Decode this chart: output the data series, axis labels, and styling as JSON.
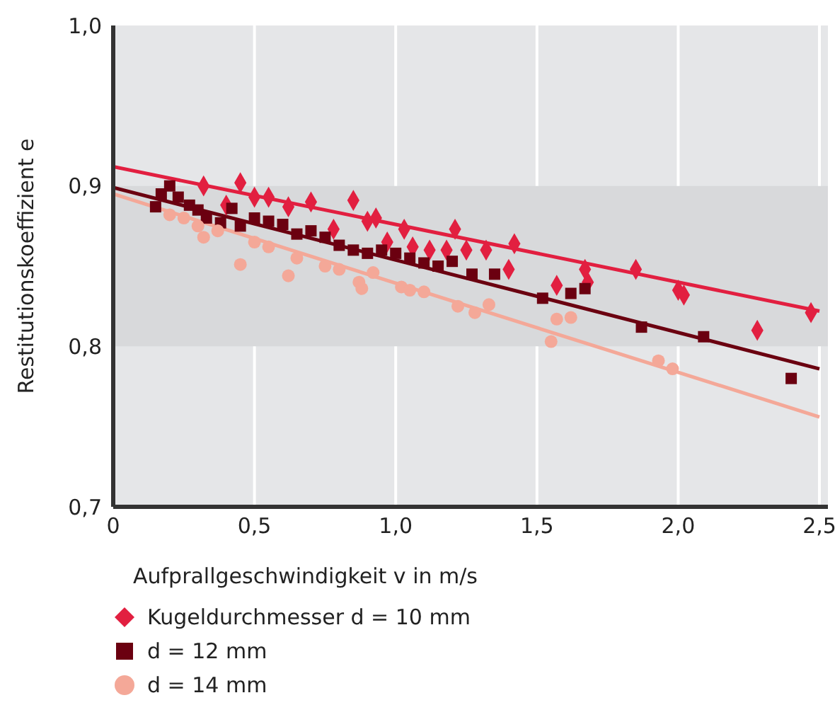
{
  "chart_data": {
    "type": "scatter",
    "xlabel": "Aufprallgeschwindigkeit v in m/s",
    "ylabel": "Restitutionskoeffizient e",
    "xlim": [
      0,
      2.53
    ],
    "xticks": [
      0,
      {
        "value": 0.5,
        "label": "0,5"
      },
      {
        "value": 1,
        "label": "1,0"
      },
      {
        "value": 1.5,
        "label": "1,5"
      },
      {
        "value": 2,
        "label": "2,0"
      },
      {
        "value": 2.5,
        "label": "2,5"
      }
    ],
    "ylim": [
      0.7,
      1.0
    ],
    "yticks": [
      {
        "value": 0.7,
        "label": "0,7"
      },
      {
        "value": 0.8,
        "label": "0,8"
      },
      {
        "value": 0.9,
        "label": "0,9"
      },
      {
        "value": 1.0,
        "label": "1,0"
      }
    ],
    "grid": "x",
    "legend": "bottom left",
    "bands": [
      {
        "axis": "y",
        "from": 0.8,
        "to": 0.9,
        "color": "#d8d9db"
      }
    ],
    "series": [
      {
        "name": "Kugeldurchmesser d = 10 mm",
        "marker": "diamond",
        "color": "#e21f40",
        "x": [
          0.32,
          0.4,
          0.45,
          0.5,
          0.55,
          0.62,
          0.7,
          0.78,
          0.85,
          0.9,
          0.93,
          0.97,
          1.03,
          1.06,
          1.12,
          1.18,
          1.21,
          1.25,
          1.32,
          1.4,
          1.42,
          1.57,
          1.67,
          1.68,
          1.85,
          2.0,
          2.02,
          2.28,
          2.47
        ],
        "values": [
          0.9,
          0.888,
          0.902,
          0.893,
          0.893,
          0.887,
          0.89,
          0.873,
          0.891,
          0.878,
          0.88,
          0.865,
          0.873,
          0.862,
          0.86,
          0.86,
          0.873,
          0.86,
          0.86,
          0.848,
          0.864,
          0.838,
          0.848,
          0.84,
          0.848,
          0.835,
          0.832,
          0.81,
          0.821
        ]
      },
      {
        "name": "d = 12 mm",
        "marker": "square",
        "color": "#6b0010",
        "x": [
          0.15,
          0.17,
          0.2,
          0.23,
          0.27,
          0.3,
          0.33,
          0.38,
          0.42,
          0.45,
          0.5,
          0.55,
          0.6,
          0.65,
          0.7,
          0.75,
          0.8,
          0.85,
          0.9,
          0.95,
          1.0,
          1.05,
          1.1,
          1.15,
          1.2,
          1.27,
          1.35,
          1.52,
          1.62,
          1.67,
          1.87,
          2.09,
          2.4
        ],
        "values": [
          0.887,
          0.895,
          0.9,
          0.893,
          0.888,
          0.885,
          0.88,
          0.877,
          0.886,
          0.875,
          0.88,
          0.878,
          0.876,
          0.87,
          0.872,
          0.868,
          0.863,
          0.86,
          0.858,
          0.86,
          0.858,
          0.855,
          0.852,
          0.85,
          0.853,
          0.845,
          0.845,
          0.83,
          0.833,
          0.836,
          0.812,
          0.806,
          0.78
        ]
      },
      {
        "name": "d = 14 mm",
        "marker": "circle",
        "color": "#f4a898",
        "x": [
          0.2,
          0.25,
          0.3,
          0.32,
          0.37,
          0.45,
          0.5,
          0.55,
          0.62,
          0.65,
          0.75,
          0.8,
          0.87,
          0.88,
          0.92,
          1.02,
          1.05,
          1.1,
          1.22,
          1.28,
          1.33,
          1.55,
          1.57,
          1.62,
          1.93,
          1.98
        ],
        "values": [
          0.882,
          0.88,
          0.875,
          0.868,
          0.872,
          0.851,
          0.865,
          0.862,
          0.844,
          0.855,
          0.85,
          0.848,
          0.84,
          0.836,
          0.846,
          0.837,
          0.835,
          0.834,
          0.825,
          0.821,
          0.826,
          0.803,
          0.817,
          0.818,
          0.791,
          0.786
        ]
      },
      {
        "type": "line",
        "color": "#e21f40",
        "x": [
          0,
          2.5
        ],
        "values": [
          0.912,
          0.822
        ]
      },
      {
        "type": "line",
        "color": "#6b0010",
        "x": [
          0,
          2.5
        ],
        "values": [
          0.899,
          0.786
        ]
      },
      {
        "type": "line",
        "color": "#f4a898",
        "x": [
          0,
          2.5
        ],
        "values": [
          0.895,
          0.756
        ]
      }
    ]
  }
}
